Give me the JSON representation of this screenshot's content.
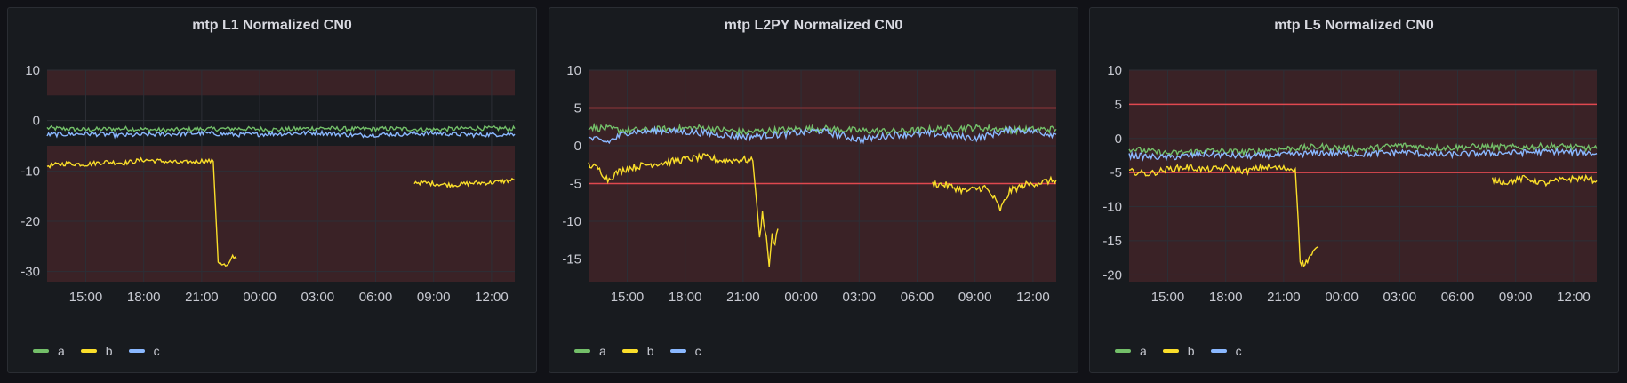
{
  "chart_data": [
    {
      "type": "line",
      "title": "mtp L1 Normalized CN0",
      "ylim": [
        -32,
        10
      ],
      "y_ticks": [
        10,
        0,
        -10,
        -20,
        -30
      ],
      "x_ticks": [
        "15:00",
        "18:00",
        "21:00",
        "00:00",
        "03:00",
        "06:00",
        "09:00",
        "12:00"
      ],
      "x_range_hours": [
        13.0,
        37.2
      ],
      "threshold_bands": [
        {
          "from": 5,
          "to": 10,
          "color": "#3a2226"
        },
        {
          "from": -32,
          "to": -5,
          "color": "#3a2226"
        }
      ],
      "threshold_lines": [],
      "series": [
        {
          "name": "a",
          "color": "#73bf69",
          "points": [
            [
              13.0,
              -1.5
            ],
            [
              15,
              -1.8
            ],
            [
              17,
              -1.6
            ],
            [
              19,
              -1.9
            ],
            [
              21,
              -1.7
            ],
            [
              23,
              -1.6
            ],
            [
              25,
              -1.8
            ],
            [
              27,
              -1.5
            ],
            [
              29,
              -1.7
            ],
            [
              31,
              -1.6
            ],
            [
              33,
              -1.8
            ],
            [
              35,
              -1.5
            ],
            [
              37.2,
              -1.6
            ]
          ]
        },
        {
          "name": "b",
          "color": "#fade2a",
          "points": [
            [
              13.0,
              -9
            ],
            [
              14,
              -8.5
            ],
            [
              15,
              -8.7
            ],
            [
              16,
              -8.2
            ],
            [
              17,
              -8.4
            ],
            [
              18,
              -7.8
            ],
            [
              19,
              -8.1
            ],
            [
              20,
              -8.4
            ],
            [
              21,
              -8.0
            ],
            [
              21.6,
              -8.1
            ],
            [
              21.75,
              -20
            ],
            [
              21.85,
              -28
            ],
            [
              22.1,
              -28.5
            ],
            [
              22.3,
              -29
            ],
            [
              22.5,
              -28
            ],
            [
              22.6,
              -27
            ],
            [
              22.8,
              -27.5
            ],
            null,
            [
              32.0,
              -12.2
            ],
            [
              33,
              -12.5
            ],
            [
              34,
              -12.8
            ],
            [
              35,
              -12.4
            ],
            [
              36,
              -12.3
            ],
            [
              37.2,
              -11.8
            ]
          ]
        },
        {
          "name": "c",
          "color": "#8ab8ff",
          "points": [
            [
              13.0,
              -2.8
            ],
            [
              15,
              -2.6
            ],
            [
              17,
              -2.9
            ],
            [
              19,
              -2.7
            ],
            [
              21,
              -2.5
            ],
            [
              23,
              -2.8
            ],
            [
              25,
              -2.6
            ],
            [
              27,
              -2.4
            ],
            [
              29,
              -2.9
            ],
            [
              31,
              -2.7
            ],
            [
              33,
              -2.5
            ],
            [
              35,
              -2.8
            ],
            [
              37.2,
              -2.7
            ]
          ]
        }
      ]
    },
    {
      "type": "line",
      "title": "mtp L2PY Normalized CN0",
      "ylim": [
        -18,
        10
      ],
      "y_ticks": [
        10,
        5,
        0,
        -5,
        -10,
        -15
      ],
      "x_ticks": [
        "15:00",
        "18:00",
        "21:00",
        "00:00",
        "03:00",
        "06:00",
        "09:00",
        "12:00"
      ],
      "x_range_hours": [
        13.0,
        37.2
      ],
      "threshold_bands": [
        {
          "from": -18,
          "to": 10,
          "color": "#3a2226"
        }
      ],
      "threshold_lines": [
        5,
        -5
      ],
      "series": [
        {
          "name": "a",
          "color": "#73bf69",
          "points": [
            [
              13.0,
              2.5
            ],
            [
              15,
              2.0
            ],
            [
              17,
              2.2
            ],
            [
              19,
              2.4
            ],
            [
              21,
              1.8
            ],
            [
              23,
              2.1
            ],
            [
              25,
              2.3
            ],
            [
              27,
              2.0
            ],
            [
              29,
              1.9
            ],
            [
              31,
              2.2
            ],
            [
              33,
              2.4
            ],
            [
              35,
              2.1
            ],
            [
              37.2,
              2.2
            ]
          ]
        },
        {
          "name": "b",
          "color": "#fade2a",
          "points": [
            [
              13.0,
              -2.5
            ],
            [
              13.5,
              -3
            ],
            [
              14,
              -4.5
            ],
            [
              14.5,
              -3.5
            ],
            [
              15,
              -3
            ],
            [
              16,
              -2.5
            ],
            [
              17,
              -2.2
            ],
            [
              18,
              -1.8
            ],
            [
              19,
              -1.5
            ],
            [
              20,
              -2.0
            ],
            [
              21,
              -1.8
            ],
            [
              21.5,
              -2.0
            ],
            [
              21.7,
              -7.5
            ],
            [
              21.85,
              -12
            ],
            [
              22.0,
              -9
            ],
            [
              22.2,
              -12
            ],
            [
              22.35,
              -16
            ],
            [
              22.5,
              -12
            ],
            [
              22.65,
              -13
            ],
            [
              22.8,
              -11
            ],
            null,
            [
              30.8,
              -5.0
            ],
            [
              31.5,
              -5.2
            ],
            [
              32.5,
              -6.0
            ],
            [
              33.5,
              -5.5
            ],
            [
              34.0,
              -7.0
            ],
            [
              34.3,
              -8.5
            ],
            [
              34.8,
              -6
            ],
            [
              35.5,
              -5.2
            ],
            [
              36.5,
              -4.8
            ],
            [
              37.2,
              -4.5
            ]
          ]
        },
        {
          "name": "c",
          "color": "#8ab8ff",
          "points": [
            [
              13.0,
              1.0
            ],
            [
              14,
              0.5
            ],
            [
              15,
              1.8
            ],
            [
              17,
              2.0
            ],
            [
              19,
              1.7
            ],
            [
              21,
              1.2
            ],
            [
              23,
              1.5
            ],
            [
              25,
              2.0
            ],
            [
              27,
              0.8
            ],
            [
              29,
              1.5
            ],
            [
              31,
              1.6
            ],
            [
              33,
              1.0
            ],
            [
              35,
              2.2
            ],
            [
              37.2,
              1.5
            ]
          ]
        }
      ]
    },
    {
      "type": "line",
      "title": "mtp L5 Normalized CN0",
      "ylim": [
        -21,
        10
      ],
      "y_ticks": [
        10,
        5,
        0,
        -5,
        -10,
        -15,
        -20
      ],
      "x_ticks": [
        "15:00",
        "18:00",
        "21:00",
        "00:00",
        "03:00",
        "06:00",
        "09:00",
        "12:00"
      ],
      "x_range_hours": [
        13.0,
        37.2
      ],
      "threshold_bands": [
        {
          "from": -21,
          "to": 10,
          "color": "#3a2226"
        }
      ],
      "threshold_lines": [
        5,
        -5
      ],
      "series": [
        {
          "name": "a",
          "color": "#73bf69",
          "points": [
            [
              13.0,
              -1.5
            ],
            [
              15,
              -2.2
            ],
            [
              17,
              -1.8
            ],
            [
              19,
              -2.0
            ],
            [
              21,
              -1.5
            ],
            [
              23,
              -1.2
            ],
            [
              25,
              -1.6
            ],
            [
              27,
              -1.0
            ],
            [
              29,
              -1.4
            ],
            [
              31,
              -1.2
            ],
            [
              33,
              -1.3
            ],
            [
              35,
              -1.1
            ],
            [
              37.2,
              -1.5
            ]
          ]
        },
        {
          "name": "b",
          "color": "#fade2a",
          "points": [
            [
              13.0,
              -4.8
            ],
            [
              14,
              -5.2
            ],
            [
              15,
              -4.5
            ],
            [
              16,
              -4.2
            ],
            [
              17,
              -4.6
            ],
            [
              18,
              -4.3
            ],
            [
              19,
              -4.8
            ],
            [
              20,
              -4.2
            ],
            [
              21,
              -4.4
            ],
            [
              21.6,
              -4.5
            ],
            [
              21.75,
              -12
            ],
            [
              21.85,
              -18
            ],
            [
              22.1,
              -18.5
            ],
            [
              22.3,
              -17.5
            ],
            [
              22.6,
              -16.5
            ],
            [
              22.8,
              -16
            ],
            null,
            [
              31.8,
              -6.0
            ],
            [
              32.5,
              -6.4
            ],
            [
              33.5,
              -5.8
            ],
            [
              34.5,
              -6.6
            ],
            [
              35.5,
              -6.0
            ],
            [
              36.5,
              -5.8
            ],
            [
              37.2,
              -6.2
            ]
          ]
        },
        {
          "name": "c",
          "color": "#8ab8ff",
          "points": [
            [
              13.0,
              -2.5
            ],
            [
              15,
              -2.8
            ],
            [
              17,
              -2.3
            ],
            [
              19,
              -2.6
            ],
            [
              21,
              -2.4
            ],
            [
              23,
              -2.1
            ],
            [
              25,
              -2.3
            ],
            [
              27,
              -2.0
            ],
            [
              29,
              -2.4
            ],
            [
              31,
              -2.2
            ],
            [
              33,
              -2.1
            ],
            [
              35,
              -1.9
            ],
            [
              37.2,
              -2.2
            ]
          ]
        }
      ]
    }
  ]
}
